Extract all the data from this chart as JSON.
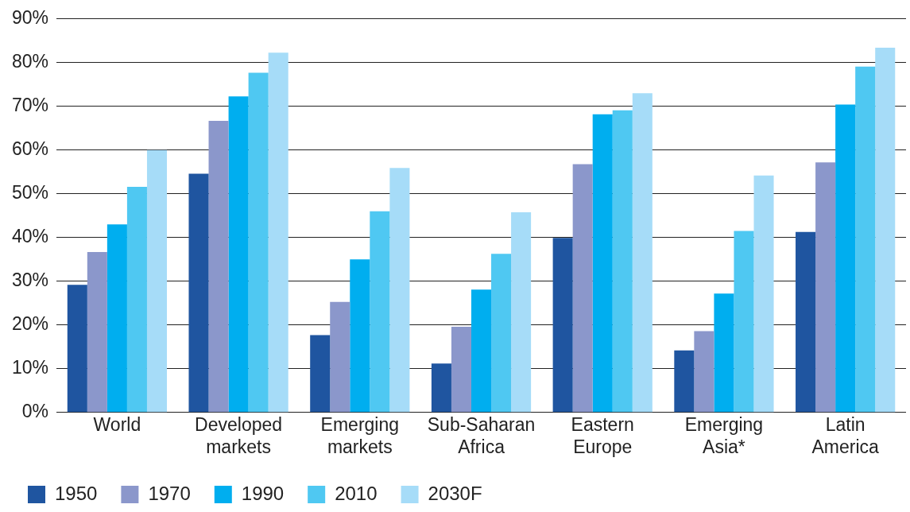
{
  "chart_data": {
    "type": "bar",
    "categories": [
      "World",
      "Developed markets",
      "Emerging markets",
      "Sub-Saharan Africa",
      "Eastern Europe",
      "Emerging Asia*",
      "Latin America"
    ],
    "series": [
      {
        "name": "1950",
        "color": "#1f55a0",
        "values": [
          29.2,
          54.6,
          17.7,
          11.2,
          39.9,
          14.2,
          41.3
        ]
      },
      {
        "name": "1970",
        "color": "#8b97cb",
        "values": [
          36.7,
          66.7,
          25.3,
          19.6,
          56.8,
          18.6,
          57.2
        ]
      },
      {
        "name": "1990",
        "color": "#00aeef",
        "values": [
          43,
          72.3,
          35,
          28.1,
          68.2,
          27.2,
          70.4
        ]
      },
      {
        "name": "2010",
        "color": "#4fc8f2",
        "values": [
          51.6,
          77.7,
          46,
          36.3,
          69.1,
          41.5,
          79.1
        ]
      },
      {
        "name": "2030F",
        "color": "#a6dcf8",
        "values": [
          60,
          82.3,
          55.9,
          45.8,
          73,
          54.2,
          83.4
        ]
      }
    ],
    "ylim": [
      0,
      90
    ],
    "yticks": [
      {
        "value": 0,
        "label": "0%"
      },
      {
        "value": 10,
        "label": "10%"
      },
      {
        "value": 20,
        "label": "20%"
      },
      {
        "value": 30,
        "label": "30%"
      },
      {
        "value": 40,
        "label": "40%"
      },
      {
        "value": 50,
        "label": "50%"
      },
      {
        "value": 60,
        "label": "60%"
      },
      {
        "value": 70,
        "label": "70%"
      },
      {
        "value": 80,
        "label": "80%"
      },
      {
        "value": 90,
        "label": "90%"
      }
    ],
    "grid": "y",
    "legend": "bottom left"
  }
}
